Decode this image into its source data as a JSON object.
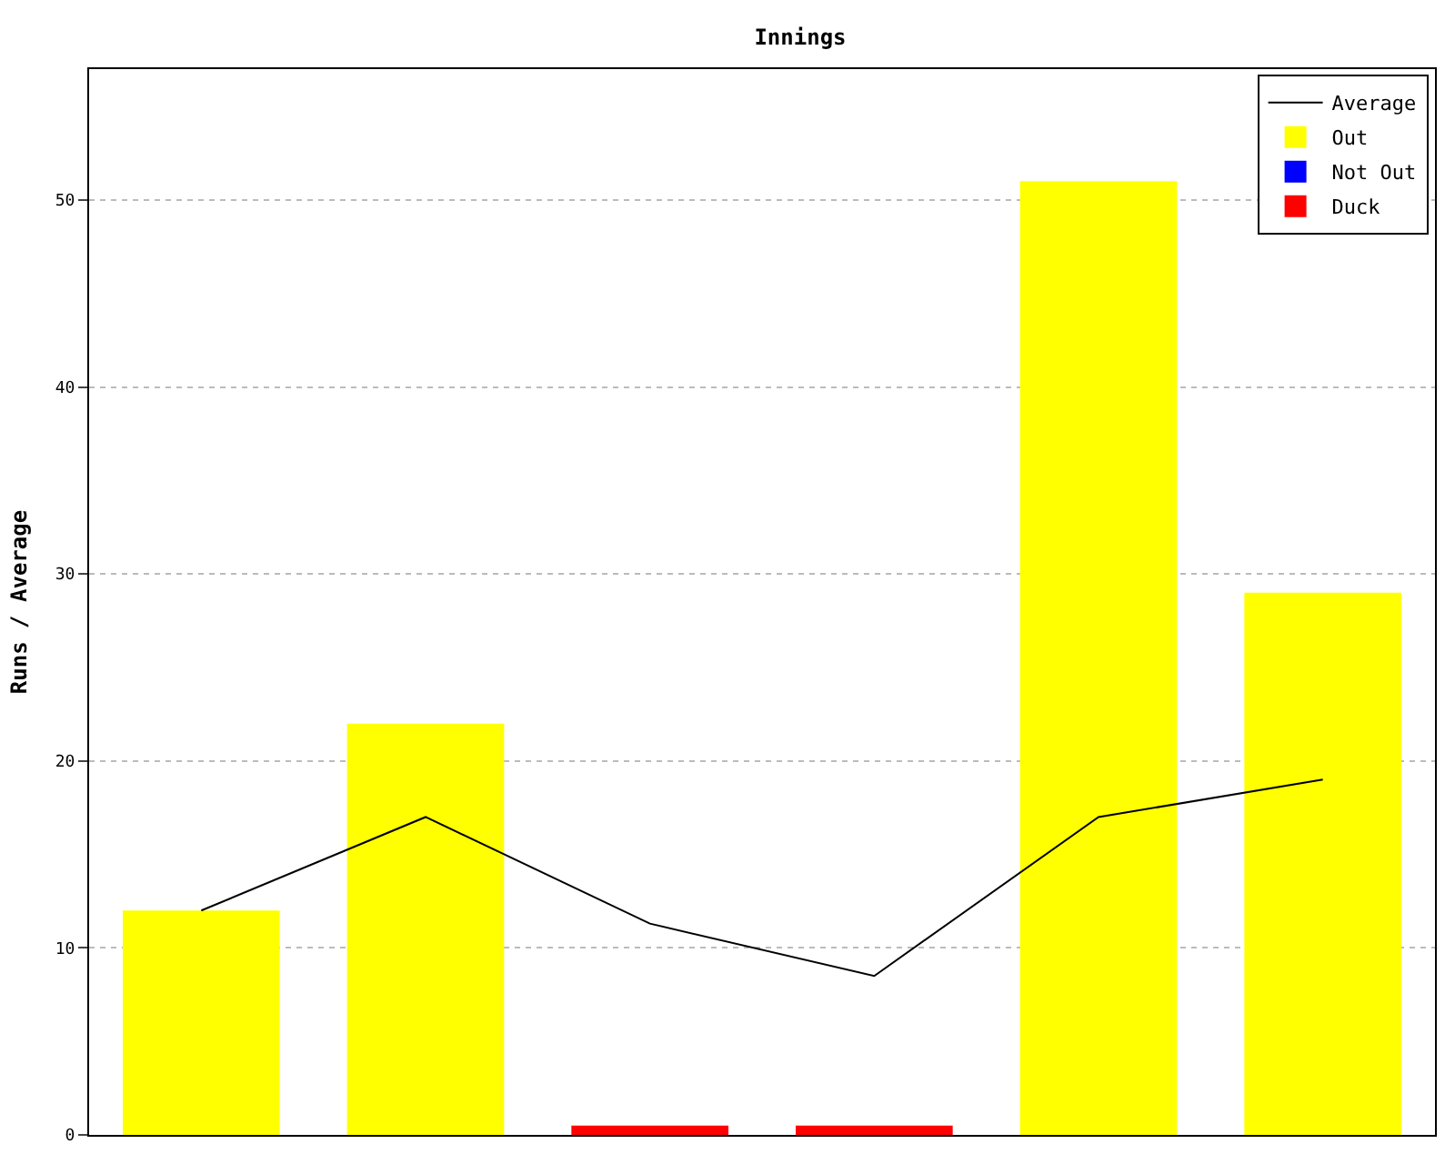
{
  "chart_data": {
    "type": "bar",
    "title": "Innings",
    "ylabel": "Runs / Average",
    "categories": [
      null,
      null,
      null,
      null,
      null,
      null
    ],
    "series": [
      {
        "name": "Average",
        "type": "line",
        "color": "#000000",
        "values": [
          12,
          17,
          11.3,
          8.5,
          17,
          19
        ]
      },
      {
        "name": "Out",
        "color": "#ffff00",
        "values": [
          12,
          22,
          null,
          null,
          51,
          29
        ]
      },
      {
        "name": "Not Out",
        "color": "#0000ff",
        "values": [
          null,
          null,
          null,
          null,
          null,
          null
        ]
      },
      {
        "name": "Duck",
        "color": "#ff0000",
        "values": [
          null,
          null,
          0.5,
          0.5,
          null,
          null
        ]
      }
    ],
    "ylim": [
      0,
      57
    ],
    "yticks": [
      0,
      10,
      20,
      30,
      40,
      50
    ],
    "grid": "y",
    "legend": "top right",
    "marker": "none",
    "line_style": "solid"
  }
}
